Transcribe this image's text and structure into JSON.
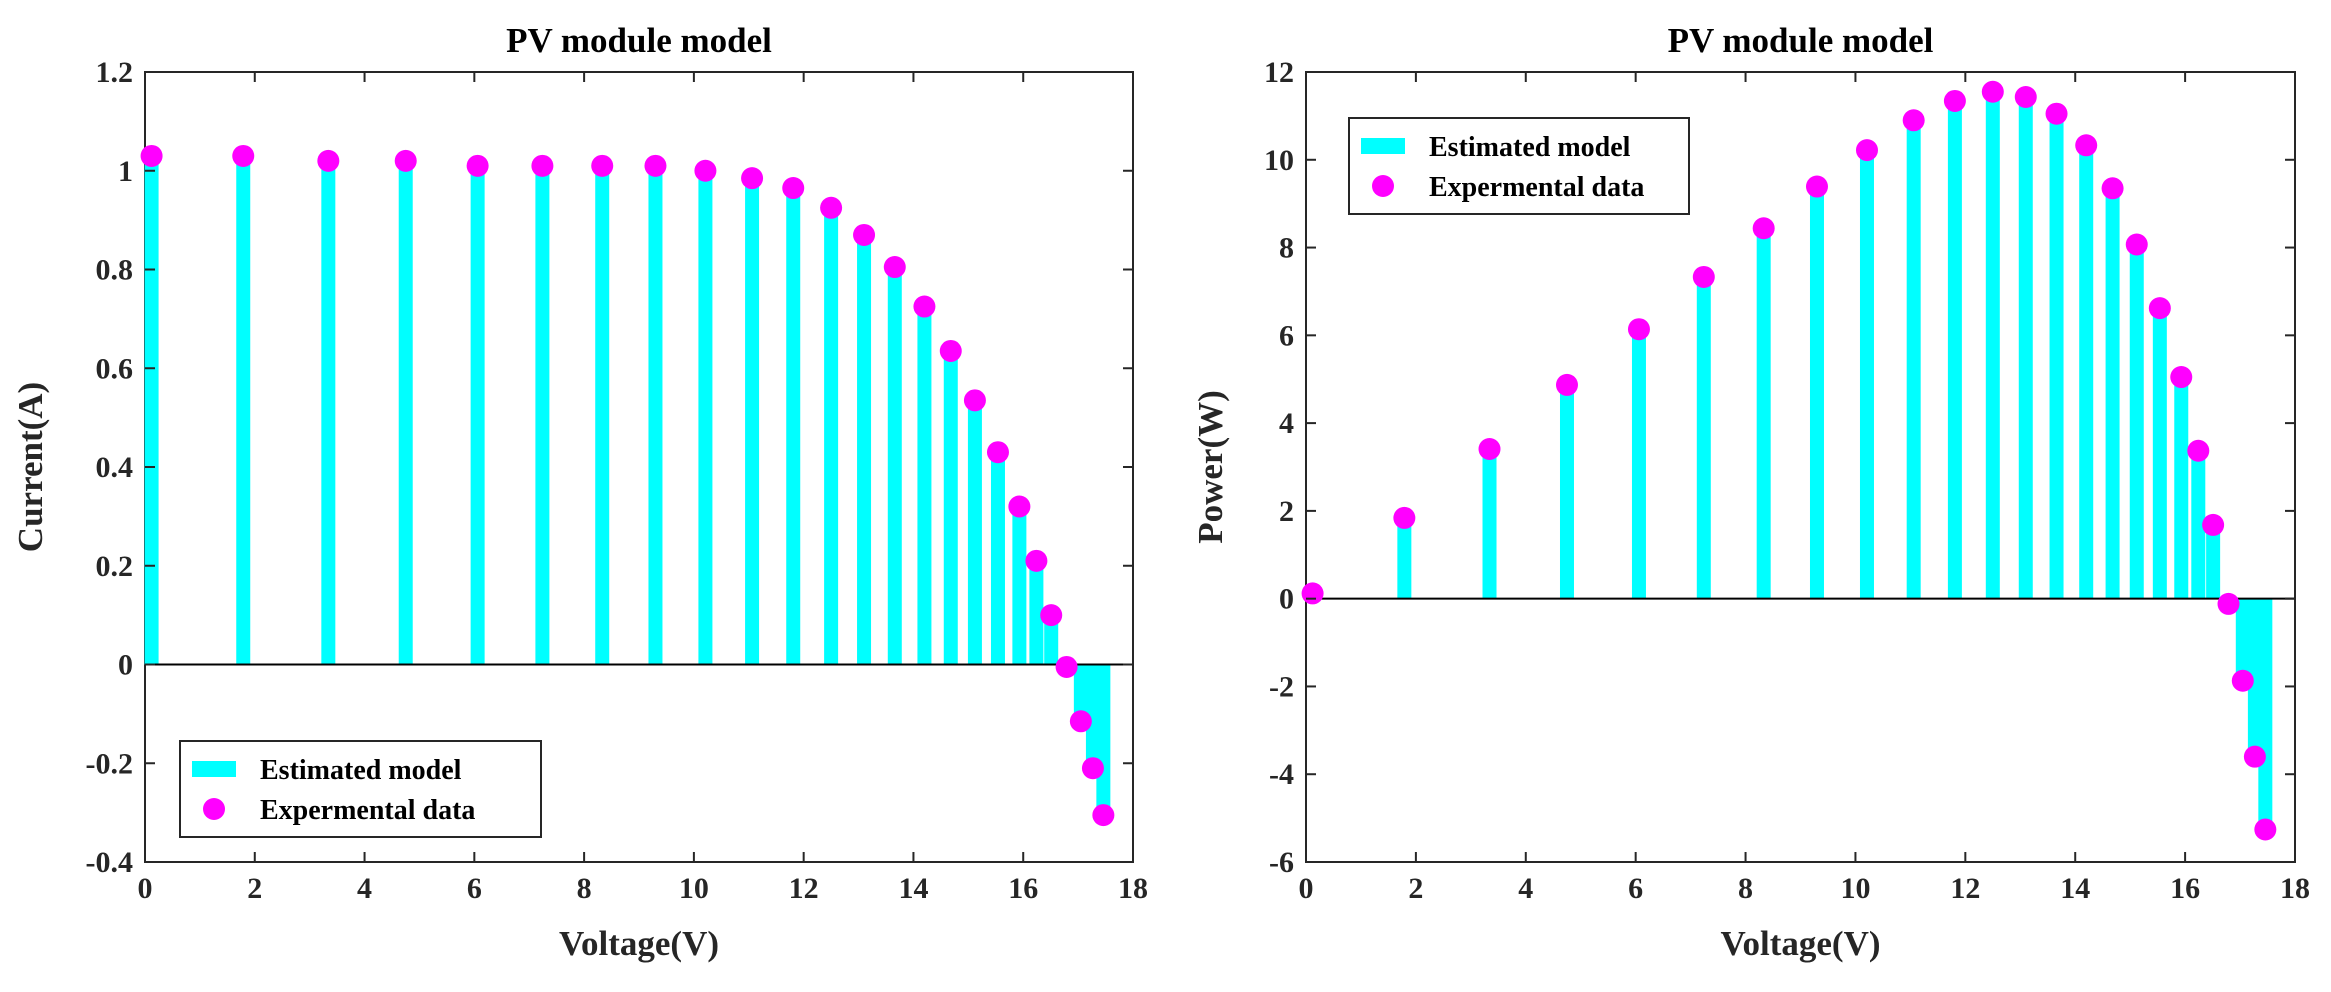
{
  "chart_data": [
    {
      "type": "bar",
      "title": "PV module model",
      "xlabel": "Voltage(V)",
      "ylabel": "Current(A)",
      "xlim": [
        0,
        18
      ],
      "ylim": [
        -0.4,
        1.2
      ],
      "xticks": [
        0,
        2,
        4,
        6,
        8,
        10,
        12,
        14,
        16,
        18
      ],
      "yticks": [
        -0.4,
        -0.2,
        0,
        0.2,
        0.4,
        0.6,
        0.8,
        1,
        1.2
      ],
      "ytick_labels": [
        "-0.4",
        "-0.2",
        "0",
        "0.2",
        "0.4",
        "0.6",
        "0.8",
        "1",
        "1.2"
      ],
      "x": [
        0.12,
        1.79,
        3.34,
        4.75,
        6.06,
        7.24,
        8.33,
        9.3,
        10.21,
        11.06,
        11.81,
        12.5,
        13.1,
        13.66,
        14.2,
        14.68,
        15.12,
        15.54,
        15.93,
        16.24,
        16.51,
        16.79,
        17.05,
        17.27,
        17.46
      ],
      "series": [
        {
          "name": "Estimated model",
          "style": "bar",
          "color": "#00ffff",
          "values": [
            1.03,
            1.03,
            1.02,
            1.02,
            1.01,
            1.01,
            1.01,
            1.01,
            1.0,
            0.98,
            0.96,
            0.92,
            0.87,
            0.8,
            0.72,
            0.63,
            0.53,
            0.43,
            0.32,
            0.21,
            0.1,
            -0.01,
            -0.12,
            -0.21,
            -0.3
          ]
        },
        {
          "name": "Expermental data",
          "style": "marker",
          "color": "#ff00ff",
          "values": [
            1.03,
            1.03,
            1.02,
            1.02,
            1.01,
            1.01,
            1.01,
            1.01,
            1.0,
            0.985,
            0.965,
            0.925,
            0.87,
            0.805,
            0.725,
            0.635,
            0.535,
            0.43,
            0.32,
            0.21,
            0.1,
            -0.005,
            -0.115,
            -0.21,
            -0.305
          ]
        }
      ],
      "legend_position": "bottom-left"
    },
    {
      "type": "bar",
      "title": "PV module model",
      "xlabel": "Voltage(V)",
      "ylabel": "Power(W)",
      "xlim": [
        0,
        18
      ],
      "ylim": [
        -6,
        12
      ],
      "xticks": [
        0,
        2,
        4,
        6,
        8,
        10,
        12,
        14,
        16,
        18
      ],
      "yticks": [
        -6,
        -4,
        -2,
        0,
        2,
        4,
        6,
        8,
        10,
        12
      ],
      "ytick_labels": [
        "-6",
        "-4",
        "-2",
        "0",
        "2",
        "4",
        "6",
        "8",
        "10",
        "12"
      ],
      "x": [
        0.12,
        1.79,
        3.34,
        4.75,
        6.06,
        7.24,
        8.33,
        9.3,
        10.21,
        11.06,
        11.81,
        12.5,
        13.1,
        13.66,
        14.2,
        14.68,
        15.12,
        15.54,
        15.93,
        16.24,
        16.51,
        16.79,
        17.05,
        17.27,
        17.46
      ],
      "series": [
        {
          "name": "Estimated model",
          "style": "bar",
          "color": "#00ffff",
          "values": [
            0.12,
            1.84,
            3.41,
            4.85,
            6.12,
            7.31,
            8.41,
            9.39,
            10.21,
            10.84,
            11.34,
            11.5,
            11.4,
            10.93,
            10.22,
            9.25,
            8.01,
            6.68,
            5.1,
            3.41,
            1.65,
            -0.17,
            -2.05,
            -3.63,
            -5.24
          ]
        },
        {
          "name": "Expermental data",
          "style": "marker",
          "color": "#ff00ff",
          "values": [
            0.12,
            1.84,
            3.41,
            4.87,
            6.14,
            7.33,
            8.44,
            9.39,
            10.22,
            10.9,
            11.34,
            11.55,
            11.43,
            11.05,
            10.33,
            9.35,
            8.07,
            6.62,
            5.05,
            3.37,
            1.68,
            -0.12,
            -1.87,
            -3.6,
            -5.26
          ]
        }
      ],
      "legend_position": "top-left"
    }
  ]
}
